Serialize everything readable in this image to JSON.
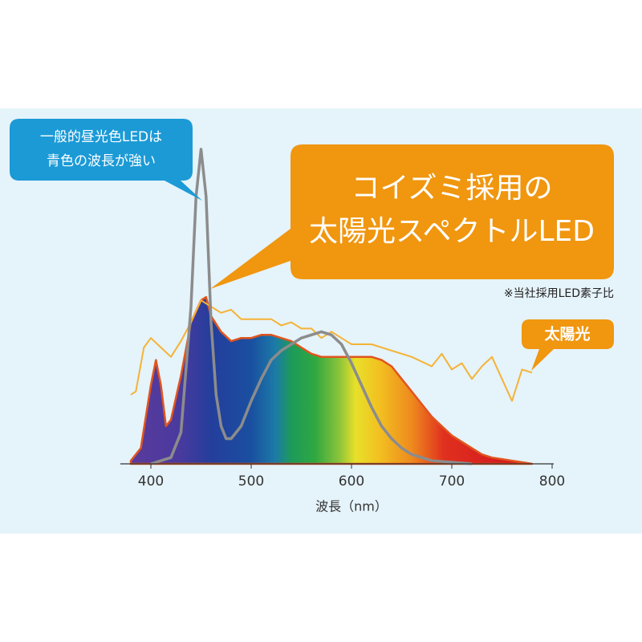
{
  "chart_data": {
    "type": "line",
    "xlabel": "波長（nm）",
    "xlim": [
      370,
      810
    ],
    "xticks": [
      400,
      500,
      600,
      700,
      800
    ],
    "ylim": [
      0,
      100
    ],
    "callout_led": [
      "一般的昼光色LEDは",
      "青色の波長が強い"
    ],
    "callout_main": [
      "コイズミ採用の",
      "太陽光スペクトルLED"
    ],
    "note": "※当社採用LED素子比",
    "series": [
      {
        "color": "#e0551e",
        "fill": "rainbow",
        "x": [
          380,
          390,
          400,
          405,
          410,
          415,
          420,
          430,
          440,
          450,
          455,
          460,
          470,
          480,
          490,
          500,
          510,
          520,
          530,
          540,
          550,
          560,
          570,
          580,
          590,
          600,
          610,
          620,
          630,
          640,
          650,
          660,
          670,
          680,
          690,
          700,
          710,
          720,
          730,
          740,
          750,
          760,
          770,
          780
        ],
        "values": [
          1,
          5,
          25,
          33,
          25,
          12,
          14,
          28,
          45,
          52,
          53,
          47,
          42,
          39,
          40,
          40,
          41,
          41,
          40,
          39,
          37,
          35,
          34,
          34,
          34,
          34,
          34,
          34,
          33,
          31,
          27,
          23,
          19,
          15,
          12,
          9,
          7,
          5,
          3,
          2,
          1.5,
          1,
          0.5,
          0
        ]
      },
      {
        "name": "太陽光",
        "color": "#f5b335",
        "x": [
          380,
          385,
          393,
          400,
          410,
          420,
          430,
          440,
          450,
          460,
          470,
          480,
          490,
          500,
          510,
          520,
          530,
          540,
          550,
          560,
          570,
          580,
          590,
          600,
          620,
          640,
          660,
          680,
          690,
          700,
          710,
          720,
          730,
          740,
          750,
          760,
          770,
          780
        ],
        "values": [
          22,
          23,
          37,
          40,
          37,
          34,
          39,
          45,
          52,
          50,
          48,
          49,
          46,
          46,
          46,
          46,
          44,
          45,
          43,
          43,
          40,
          42,
          40,
          38,
          38,
          36,
          34,
          31,
          35,
          30,
          32,
          27,
          31,
          34,
          27,
          20,
          30,
          29
        ]
      },
      {
        "color": "#8c8c8c",
        "x": [
          400,
          420,
          430,
          440,
          445,
          450,
          455,
          460,
          465,
          470,
          475,
          480,
          490,
          500,
          510,
          520,
          530,
          540,
          550,
          560,
          570,
          580,
          590,
          600,
          610,
          620,
          630,
          640,
          650,
          660,
          680,
          700,
          720
        ],
        "values": [
          0,
          2,
          10,
          50,
          85,
          100,
          85,
          45,
          22,
          12,
          8,
          8,
          12,
          20,
          27,
          33,
          36,
          38,
          40,
          41,
          42,
          41,
          38,
          32,
          25,
          18,
          12,
          8,
          5,
          3,
          1,
          0.5,
          0
        ]
      }
    ]
  }
}
